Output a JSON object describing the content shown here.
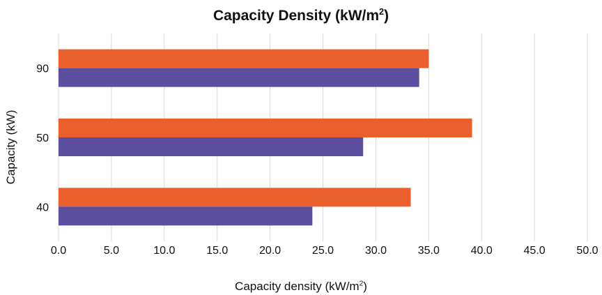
{
  "chart_data": {
    "type": "bar",
    "orientation": "horizontal",
    "title": "Capacity Density (kW/m",
    "title_sup": "2",
    "title_suffix": ")",
    "xlabel": "Capacity density (kW/m",
    "xlabel_sup": "2",
    "xlabel_suffix": ")",
    "ylabel": "Capacity (kW)",
    "categories": [
      "90",
      "50",
      "40"
    ],
    "series": [
      {
        "color": "#ea5f2c",
        "values": [
          35.0,
          39.1,
          33.3
        ]
      },
      {
        "color": "#5c4fa0",
        "values": [
          34.1,
          28.8,
          24.0
        ]
      }
    ],
    "xlim": [
      0,
      50
    ],
    "xticks": [
      "0.0",
      "5.0",
      "10.0",
      "15.0",
      "20.0",
      "25.0",
      "30.0",
      "35.0",
      "40.0",
      "45.0",
      "50.0"
    ],
    "grid": "vertical",
    "legend": "none"
  }
}
